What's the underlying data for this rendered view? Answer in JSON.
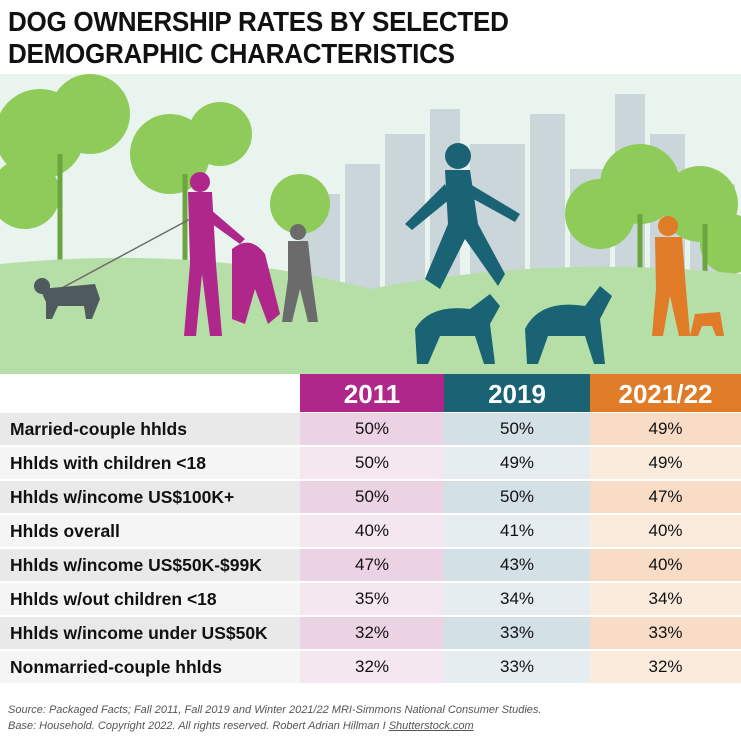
{
  "title": "DOG OWNERSHIP RATES BY SELECTED DEMOGRAPHIC CHARACTERISTICS",
  "colors": {
    "2011": "#b0278c",
    "2019": "#1a6374",
    "2021/22": "#e07b27",
    "sky": "#e9f4ef",
    "grass": "#b6dfa8",
    "tree": "#8ecb58",
    "building": "#cad6da"
  },
  "illustration": {
    "description_icons": [
      "woman-walking-dog-icon",
      "man-walking-dog-icon",
      "runner-with-dogs-icon",
      "man-with-dog-icon",
      "trees-icon",
      "city-skyline-icon"
    ]
  },
  "chart_data": {
    "type": "table",
    "title": "DOG OWNERSHIP RATES BY SELECTED DEMOGRAPHIC CHARACTERISTICS",
    "columns": [
      "2011",
      "2019",
      "2021/22"
    ],
    "rows": [
      {
        "label": "Married-couple hhlds",
        "values": [
          "50%",
          "50%",
          "49%"
        ]
      },
      {
        "label": "Hhlds with children <18",
        "values": [
          "50%",
          "49%",
          "49%"
        ]
      },
      {
        "label": "Hhlds w/income US$100K+",
        "values": [
          "50%",
          "50%",
          "47%"
        ]
      },
      {
        "label": "Hhlds overall",
        "values": [
          "40%",
          "41%",
          "40%"
        ]
      },
      {
        "label": "Hhlds w/income US$50K-$99K",
        "values": [
          "47%",
          "43%",
          "40%"
        ]
      },
      {
        "label": "Hhlds w/out children <18",
        "values": [
          "35%",
          "34%",
          "34%"
        ]
      },
      {
        "label": "Hhlds w/income under US$50K",
        "values": [
          "32%",
          "33%",
          "33%"
        ]
      },
      {
        "label": "Nonmarried-couple hhlds",
        "values": [
          "32%",
          "33%",
          "32%"
        ]
      }
    ]
  },
  "source": {
    "line1": "Source: Packaged Facts; Fall 2011, Fall 2019 and Winter 2021/22 MRI-Simmons National Consumer Studies.",
    "line2_prefix": "Base: Household. Copyright 2022. All rights reserved. Robert Adrian Hillman I ",
    "credit": "Shutterstock.com"
  }
}
